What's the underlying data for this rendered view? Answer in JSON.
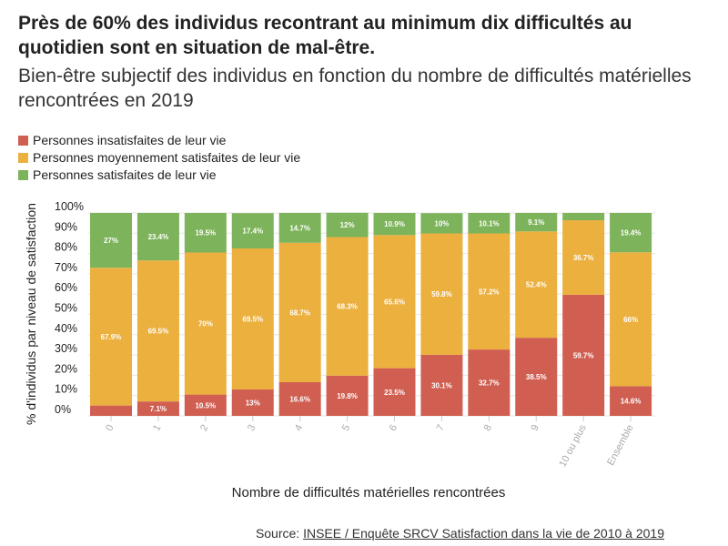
{
  "title": "Près de 60% des individus recontrant au minimum dix difficultés au quotidien sont en situation de mal-être.",
  "subtitle": "Bien-être subjectif des individus en fonction du nombre de difficultés matérielles rencontrées en 2019",
  "source_prefix": "Source: ",
  "source_link": "INSEE / Enquête SRCV Satisfaction dans la vie de 2010 à 2019",
  "chart_data": {
    "type": "bar",
    "stacked": true,
    "xlabel": "Nombre de difficultés matérielles rencontrées",
    "ylabel": "% d'individus par niveau de satisfaction",
    "ylim": [
      0,
      100
    ],
    "yticks": [
      "0%",
      "10%",
      "20%",
      "30%",
      "40%",
      "50%",
      "60%",
      "70%",
      "80%",
      "90%",
      "100%"
    ],
    "grid": true,
    "legend_position": "top-left",
    "categories": [
      "0",
      "1",
      "2",
      "3",
      "4",
      "5",
      "6",
      "7",
      "8",
      "9",
      "10 ou plus",
      "Ensemble"
    ],
    "series": [
      {
        "name": "Personnes insatisfaites de leur vie",
        "color": "#d05f52",
        "values": [
          5.1,
          7.1,
          10.5,
          13,
          16.6,
          19.8,
          23.5,
          30.1,
          32.7,
          38.5,
          59.7,
          14.6
        ],
        "labels": [
          "",
          "7.1%",
          "10.5%",
          "13%",
          "16.6%",
          "19.8%",
          "23.5%",
          "30.1%",
          "32.7%",
          "38.5%",
          "59.7%",
          "14.6%"
        ]
      },
      {
        "name": "Personnes moyennement satisfaites de leur vie",
        "color": "#ebb03e",
        "values": [
          67.9,
          69.5,
          70,
          69.5,
          68.7,
          68.3,
          65.6,
          59.8,
          57.2,
          52.4,
          36.7,
          66
        ],
        "labels": [
          "67.9%",
          "69.5%",
          "70%",
          "69.5%",
          "68.7%",
          "68.3%",
          "65.6%",
          "59.8%",
          "57.2%",
          "52.4%",
          "36.7%",
          "66%"
        ]
      },
      {
        "name": "Personnes satisfaites de leur vie",
        "color": "#7db35a",
        "values": [
          27,
          23.4,
          19.5,
          17.4,
          14.7,
          12,
          10.9,
          10,
          10.1,
          9.1,
          3.6,
          19.4
        ],
        "labels": [
          "27%",
          "23.4%",
          "19.5%",
          "17.4%",
          "14.7%",
          "12%",
          "10.9%",
          "10%",
          "10.1%",
          "9.1%",
          "",
          "19.4%"
        ]
      }
    ]
  }
}
